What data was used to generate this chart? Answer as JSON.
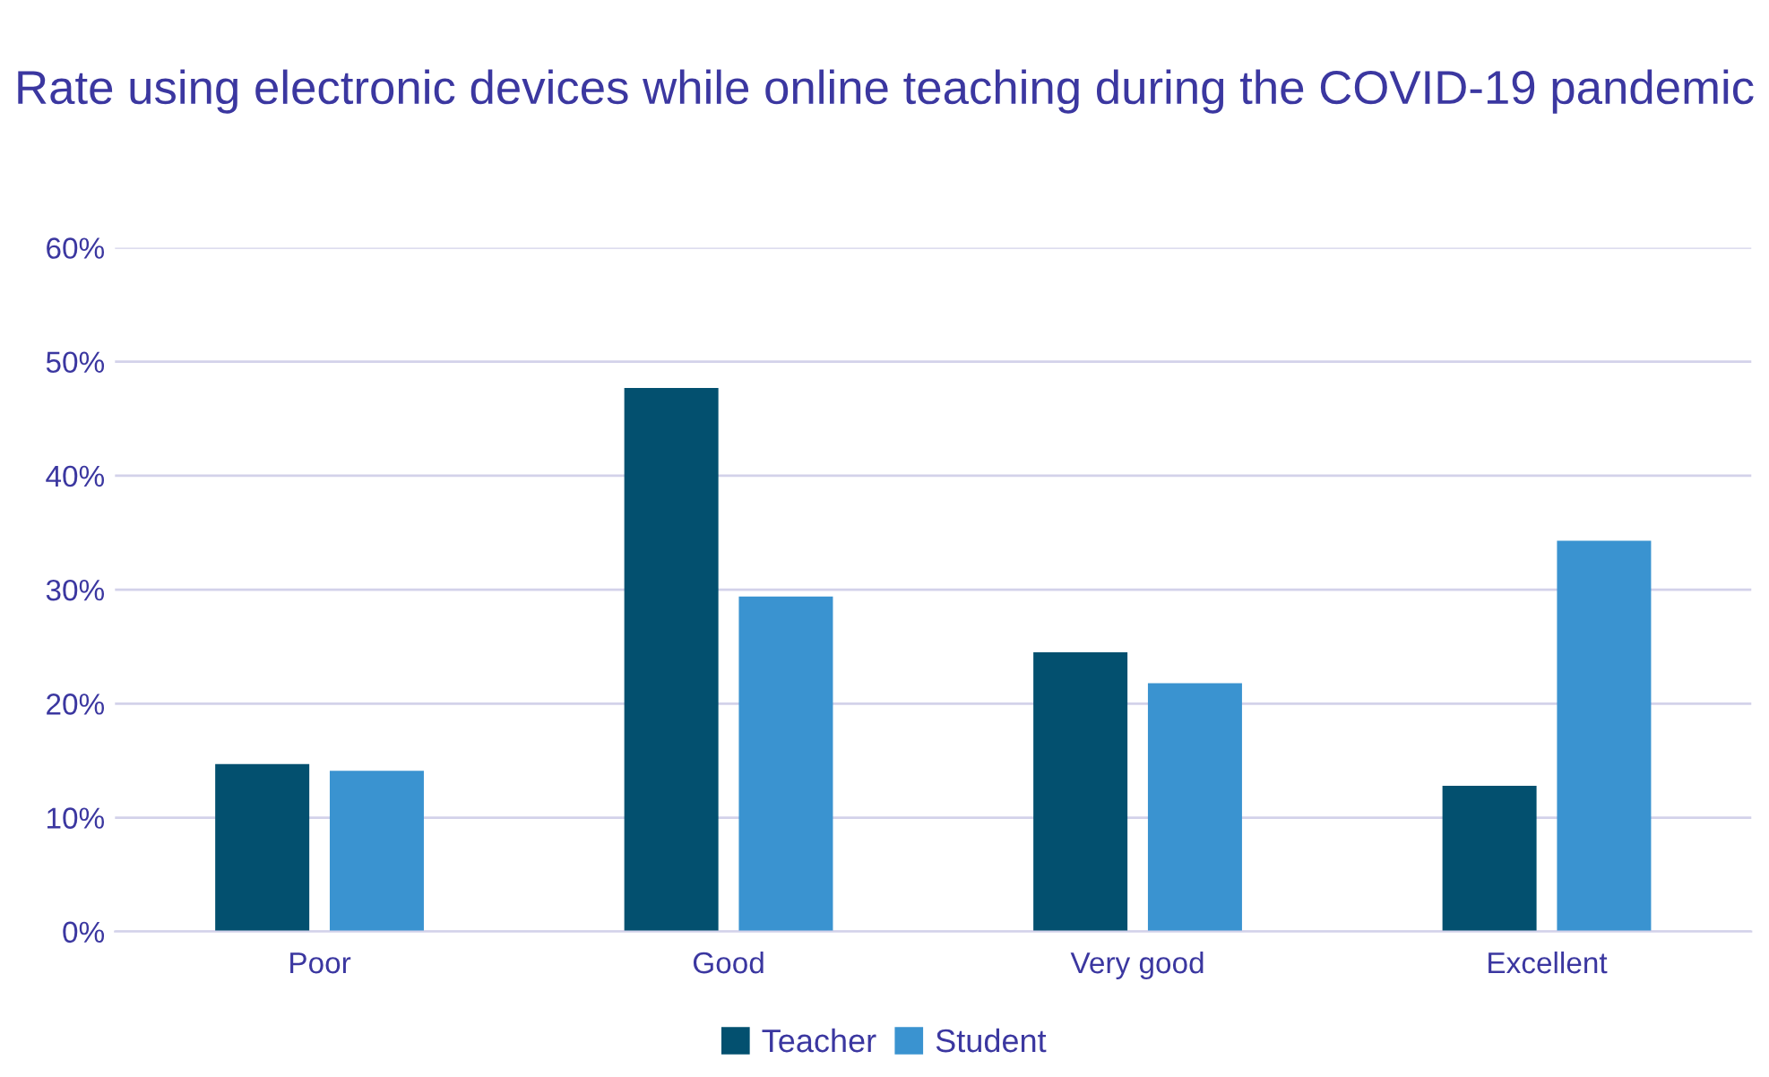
{
  "chart_data": {
    "type": "bar",
    "title": "Rate using electronic devices while online teaching during the COVID-19 pandemic",
    "categories": [
      "Poor",
      "Good",
      "Very good",
      "Excellent"
    ],
    "series": [
      {
        "name": "Teacher",
        "color": "#03506f",
        "values": [
          14.7,
          47.7,
          24.5,
          12.8
        ]
      },
      {
        "name": "Student",
        "color": "#3a93d0",
        "values": [
          14.1,
          29.4,
          21.8,
          34.3
        ]
      }
    ],
    "ylim": [
      0,
      60
    ],
    "yticks": [
      {
        "value": 0,
        "label": "0%"
      },
      {
        "value": 10,
        "label": "10%"
      },
      {
        "value": 20,
        "label": "20%"
      },
      {
        "value": 30,
        "label": "30%"
      },
      {
        "value": 40,
        "label": "40%"
      },
      {
        "value": 50,
        "label": "50%"
      },
      {
        "value": 60,
        "label": "60%"
      }
    ],
    "grid": "y",
    "legend": "bottom"
  }
}
